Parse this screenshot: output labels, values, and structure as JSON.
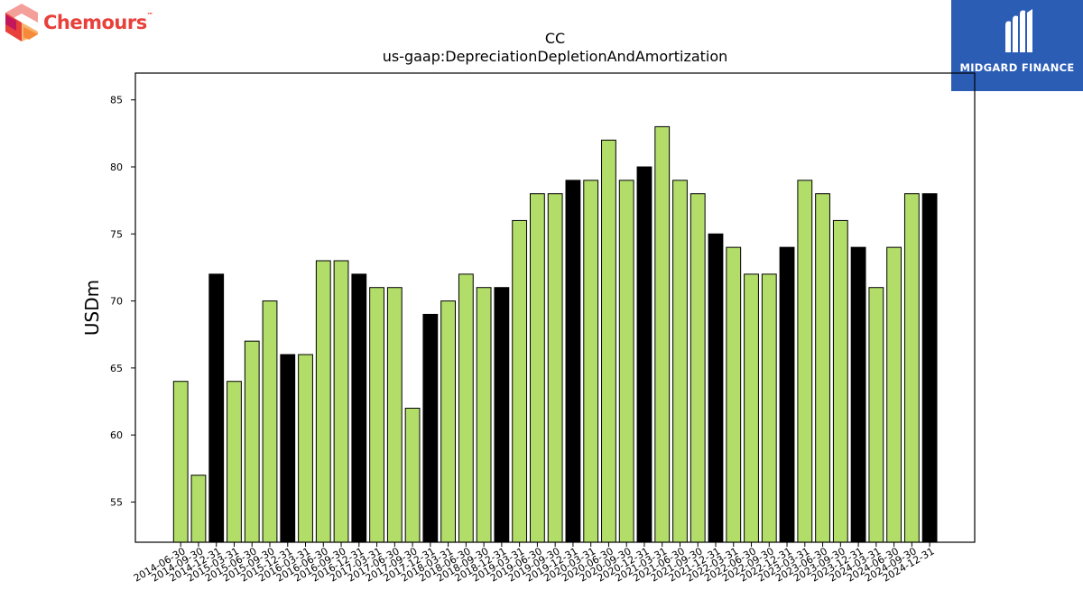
{
  "logos": {
    "left_text": "Chemours",
    "left_tm": "™",
    "right_text": "MIDGARD FINANCE"
  },
  "colors": {
    "bar_default": "#b2dd69",
    "bar_highlight": "#000000",
    "bar_edge": "#000000",
    "right_logo_bg": "#2b5db5",
    "left_logo_red": "#e8403a"
  },
  "chart_data": {
    "type": "bar",
    "title": "CC",
    "subtitle": "us-gaap:DepreciationDepletionAndAmortization",
    "xlabel": "",
    "ylabel": "USDm",
    "ylim": [
      52,
      87
    ],
    "yticks": [
      55,
      60,
      65,
      70,
      75,
      80,
      85
    ],
    "grid": false,
    "categories": [
      "2014-06-30",
      "2014-09-30",
      "2014-12-31",
      "2015-03-31",
      "2015-06-30",
      "2015-09-30",
      "2015-12-31",
      "2016-03-31",
      "2016-06-30",
      "2016-09-30",
      "2016-12-31",
      "2017-03-31",
      "2017-06-30",
      "2017-09-30",
      "2017-12-31",
      "2018-03-31",
      "2018-06-30",
      "2018-09-30",
      "2018-12-31",
      "2019-03-31",
      "2019-06-30",
      "2019-09-30",
      "2019-12-31",
      "2020-03-31",
      "2020-06-30",
      "2020-09-30",
      "2020-12-31",
      "2021-03-31",
      "2021-06-30",
      "2021-09-30",
      "2021-12-31",
      "2022-03-31",
      "2022-06-30",
      "2022-09-30",
      "2022-12-31",
      "2023-03-31",
      "2023-06-30",
      "2023-09-30",
      "2023-12-31",
      "2024-03-31",
      "2024-06-30",
      "2024-09-30",
      "2024-12-31"
    ],
    "values": [
      64,
      57,
      72,
      64,
      67,
      70,
      66,
      66,
      73,
      73,
      72,
      71,
      71,
      62,
      69,
      70,
      72,
      71,
      71,
      76,
      78,
      78,
      79,
      79,
      82,
      79,
      80,
      83,
      79,
      78,
      75,
      74,
      72,
      72,
      74,
      79,
      78,
      76,
      74,
      71,
      74,
      78,
      78
    ],
    "highlight": [
      false,
      false,
      true,
      false,
      false,
      false,
      true,
      false,
      false,
      false,
      true,
      false,
      false,
      false,
      true,
      false,
      false,
      false,
      true,
      false,
      false,
      false,
      true,
      false,
      false,
      false,
      true,
      false,
      false,
      false,
      true,
      false,
      false,
      false,
      true,
      false,
      false,
      false,
      true,
      false,
      false,
      false,
      true
    ]
  }
}
